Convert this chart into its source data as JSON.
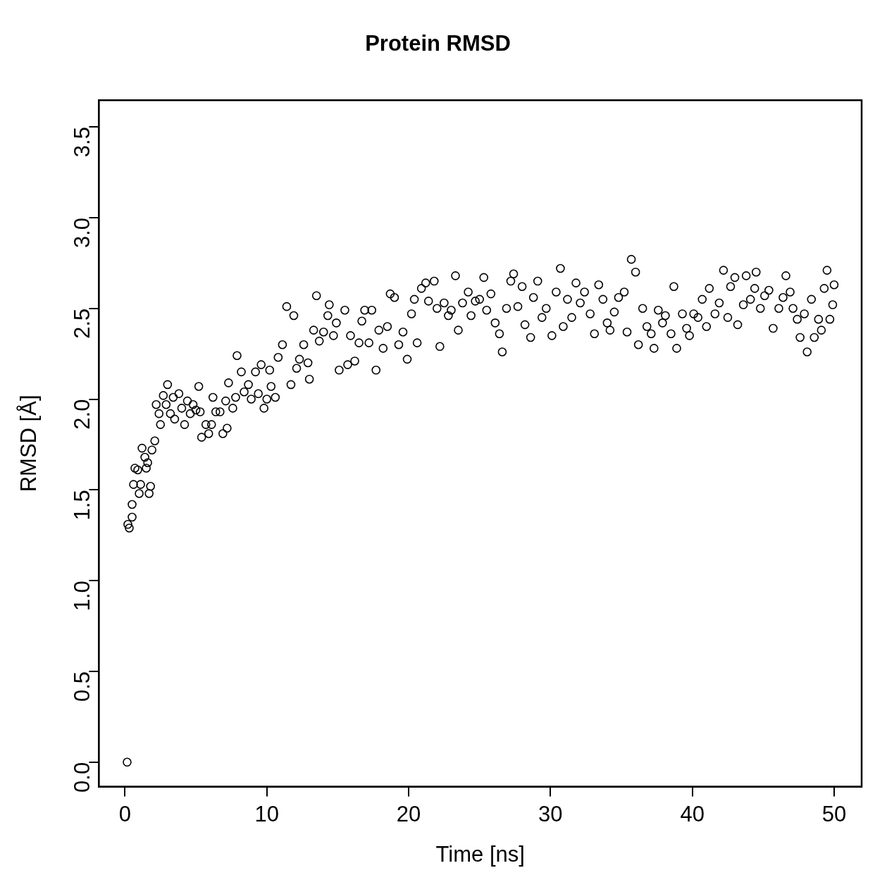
{
  "chart_data": {
    "type": "scatter",
    "title": "Protein RMSD",
    "xlabel": "Time [ns]",
    "ylabel": "RMSD [Å]",
    "marker": "circle",
    "grid": false,
    "legend": false,
    "xlim": [
      -1.84,
      51.94
    ],
    "ylim": [
      -0.135,
      3.647
    ],
    "xticks": [
      0,
      10,
      20,
      30,
      40,
      50
    ],
    "yticks": [
      {
        "value": 0,
        "label": "0.0"
      },
      0.5,
      {
        "value": 1,
        "label": "1.0"
      },
      1.5,
      {
        "value": 2,
        "label": "2.0"
      },
      2.5,
      {
        "value": 3,
        "label": "3.0"
      },
      3.5
    ],
    "series": [
      {
        "color": "#000000",
        "x": [
          0.15,
          0.2,
          0.3,
          0.5,
          0.5,
          0.6,
          0.7,
          0.9,
          1.0,
          1.1,
          1.2,
          1.4,
          1.5,
          1.6,
          1.7,
          1.8,
          1.9,
          2.1,
          2.2,
          2.4,
          2.5,
          2.7,
          2.9,
          3.0,
          3.2,
          3.4,
          3.5,
          3.8,
          4.0,
          4.2,
          4.4,
          4.6,
          4.8,
          5.0,
          5.2,
          5.3,
          5.4,
          5.7,
          5.9,
          6.1,
          6.2,
          6.4,
          6.7,
          6.9,
          7.1,
          7.2,
          7.3,
          7.6,
          7.8,
          7.9,
          8.2,
          8.4,
          8.7,
          8.9,
          9.2,
          9.4,
          9.6,
          9.8,
          10.0,
          10.2,
          10.3,
          10.6,
          10.8,
          11.1,
          11.4,
          11.7,
          11.9,
          12.1,
          12.3,
          12.6,
          12.9,
          13.0,
          13.3,
          13.5,
          13.7,
          14.0,
          14.3,
          14.4,
          14.7,
          14.9,
          15.1,
          15.5,
          15.7,
          15.9,
          16.2,
          16.5,
          16.7,
          16.9,
          17.2,
          17.4,
          17.7,
          17.9,
          18.2,
          18.5,
          18.7,
          19.0,
          19.3,
          19.6,
          19.9,
          20.2,
          20.4,
          20.6,
          20.9,
          21.2,
          21.4,
          21.8,
          22.0,
          22.2,
          22.5,
          22.8,
          23.0,
          23.3,
          23.5,
          23.8,
          24.2,
          24.4,
          24.7,
          25.0,
          25.3,
          25.5,
          25.8,
          26.1,
          26.4,
          26.6,
          26.9,
          27.2,
          27.4,
          27.7,
          28.0,
          28.2,
          28.6,
          28.8,
          29.1,
          29.4,
          29.7,
          30.1,
          30.4,
          30.7,
          30.9,
          31.2,
          31.5,
          31.8,
          32.1,
          32.4,
          32.8,
          33.1,
          33.4,
          33.7,
          34.0,
          34.2,
          34.5,
          34.8,
          35.2,
          35.4,
          35.7,
          36.0,
          36.2,
          36.5,
          36.8,
          37.1,
          37.3,
          37.6,
          37.9,
          38.1,
          38.5,
          38.7,
          38.9,
          39.3,
          39.6,
          39.8,
          40.1,
          40.4,
          40.7,
          41.0,
          41.2,
          41.6,
          41.9,
          42.2,
          42.5,
          42.7,
          43.0,
          43.2,
          43.6,
          43.8,
          44.1,
          44.4,
          44.5,
          44.8,
          45.1,
          45.4,
          45.7,
          46.1,
          46.4,
          46.6,
          46.9,
          47.1,
          47.4,
          47.6,
          47.9,
          48.1,
          48.4,
          48.6,
          48.9,
          49.1,
          49.3,
          49.5,
          49.7,
          49.9,
          50.0
        ],
        "values": [
          0.0,
          1.31,
          1.29,
          1.35,
          1.42,
          1.53,
          1.62,
          1.61,
          1.48,
          1.53,
          1.73,
          1.68,
          1.62,
          1.65,
          1.48,
          1.52,
          1.72,
          1.77,
          1.97,
          1.92,
          1.86,
          2.02,
          1.97,
          2.08,
          1.92,
          2.01,
          1.89,
          2.03,
          1.95,
          1.86,
          1.99,
          1.92,
          1.97,
          1.94,
          2.07,
          1.93,
          1.79,
          1.86,
          1.81,
          1.86,
          2.01,
          1.93,
          1.93,
          1.81,
          1.99,
          1.84,
          2.09,
          1.95,
          2.01,
          2.24,
          2.15,
          2.04,
          2.08,
          2.0,
          2.15,
          2.03,
          2.19,
          1.95,
          2.0,
          2.16,
          2.07,
          2.01,
          2.23,
          2.3,
          2.51,
          2.08,
          2.46,
          2.17,
          2.22,
          2.3,
          2.2,
          2.11,
          2.38,
          2.57,
          2.32,
          2.37,
          2.46,
          2.52,
          2.35,
          2.42,
          2.16,
          2.49,
          2.19,
          2.35,
          2.21,
          2.31,
          2.43,
          2.49,
          2.31,
          2.49,
          2.16,
          2.38,
          2.28,
          2.4,
          2.58,
          2.56,
          2.3,
          2.37,
          2.22,
          2.47,
          2.55,
          2.31,
          2.61,
          2.64,
          2.54,
          2.65,
          2.5,
          2.29,
          2.53,
          2.46,
          2.49,
          2.68,
          2.38,
          2.53,
          2.59,
          2.46,
          2.54,
          2.55,
          2.67,
          2.49,
          2.58,
          2.42,
          2.36,
          2.26,
          2.5,
          2.65,
          2.69,
          2.51,
          2.62,
          2.41,
          2.34,
          2.56,
          2.65,
          2.45,
          2.5,
          2.35,
          2.59,
          2.72,
          2.4,
          2.55,
          2.45,
          2.64,
          2.53,
          2.59,
          2.47,
          2.36,
          2.63,
          2.55,
          2.42,
          2.38,
          2.48,
          2.56,
          2.59,
          2.37,
          2.77,
          2.7,
          2.3,
          2.5,
          2.4,
          2.36,
          2.28,
          2.49,
          2.42,
          2.46,
          2.36,
          2.62,
          2.28,
          2.47,
          2.39,
          2.35,
          2.47,
          2.45,
          2.55,
          2.4,
          2.61,
          2.47,
          2.53,
          2.71,
          2.45,
          2.62,
          2.67,
          2.41,
          2.52,
          2.68,
          2.55,
          2.61,
          2.7,
          2.5,
          2.57,
          2.6,
          2.39,
          2.5,
          2.56,
          2.68,
          2.59,
          2.5,
          2.44,
          2.34,
          2.47,
          2.26,
          2.55,
          2.34,
          2.44,
          2.38,
          2.61,
          2.71,
          2.44,
          2.52,
          2.63
        ]
      }
    ]
  }
}
